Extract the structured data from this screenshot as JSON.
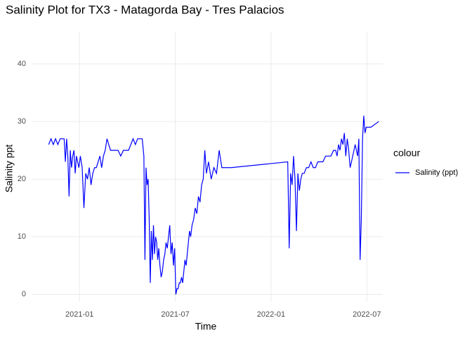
{
  "chart_data": {
    "type": "line",
    "title": "Salinity Plot for TX3 - Matagorda Bay - Tres Palacios",
    "x_label": "Time",
    "y_label": "Salinity ppt",
    "legend_title": "colour",
    "x": [
      "2020-11",
      "2020-11",
      "2020-11",
      "2020-11",
      "2020-11",
      "2020-11",
      "2020-11",
      "2020-12",
      "2020-12",
      "2020-12",
      "2020-12",
      "2020-12",
      "2020-12",
      "2020-12",
      "2020-12",
      "2020-12",
      "2020-12",
      "2020-12",
      "2020-12",
      "2020-12",
      "2021-01",
      "2021-01",
      "2021-01",
      "2021-01",
      "2021-01",
      "2021-01",
      "2021-01",
      "2021-01",
      "2021-01",
      "2021-02",
      "2021-02",
      "2021-02",
      "2021-02",
      "2021-02",
      "2021-02",
      "2021-02",
      "2021-02",
      "2021-02",
      "2021-03",
      "2021-03",
      "2021-03",
      "2021-03",
      "2021-03",
      "2021-03",
      "2021-04",
      "2021-04",
      "2021-04",
      "2021-04",
      "2021-04",
      "2021-04",
      "2021-04",
      "2021-05",
      "2021-05",
      "2021-05",
      "2021-05",
      "2021-05",
      "2021-05",
      "2021-05",
      "2021-05",
      "2021-05",
      "2021-05",
      "2021-05",
      "2021-05",
      "2021-05",
      "2021-05",
      "2021-05",
      "2021-06",
      "2021-06",
      "2021-06",
      "2021-06",
      "2021-06",
      "2021-06",
      "2021-06",
      "2021-06",
      "2021-06",
      "2021-06",
      "2021-06",
      "2021-06",
      "2021-06",
      "2021-07",
      "2021-07",
      "2021-07",
      "2021-07",
      "2021-07",
      "2021-07",
      "2021-07",
      "2021-07",
      "2021-07",
      "2021-07",
      "2021-07",
      "2021-07",
      "2021-07",
      "2021-07",
      "2021-08",
      "2021-08",
      "2021-08",
      "2021-08",
      "2021-08",
      "2021-08",
      "2021-08",
      "2021-08",
      "2021-08",
      "2021-08",
      "2021-09",
      "2021-09",
      "2021-09",
      "2021-09",
      "2021-09",
      "2021-09",
      "2021-10",
      "2022-02",
      "2022-02",
      "2022-02",
      "2022-02",
      "2022-02",
      "2022-02",
      "2022-02",
      "2022-02",
      "2022-02",
      "2022-02",
      "2022-02",
      "2022-03",
      "2022-03",
      "2022-03",
      "2022-03",
      "2022-03",
      "2022-03",
      "2022-03",
      "2022-04",
      "2022-04",
      "2022-04",
      "2022-04",
      "2022-04",
      "2022-04",
      "2022-05",
      "2022-05",
      "2022-05",
      "2022-05",
      "2022-05",
      "2022-05",
      "2022-05",
      "2022-05",
      "2022-05",
      "2022-05",
      "2022-05",
      "2022-06",
      "2022-06",
      "2022-06",
      "2022-06",
      "2022-06",
      "2022-06",
      "2022-06",
      "2022-06",
      "2022-06",
      "2022-06",
      "2022-06",
      "2022-06",
      "2022-06",
      "2022-07",
      "2022-07"
    ],
    "series": [
      {
        "name": "Salinity (ppt)",
        "color": "#0000ff",
        "values": [
          26,
          27,
          26,
          27,
          26,
          27,
          27,
          27,
          23,
          27,
          24,
          17,
          25,
          22,
          24,
          25,
          21,
          24,
          23,
          22,
          24,
          22,
          15,
          21,
          20,
          22,
          19,
          21,
          22,
          22,
          23,
          24,
          22,
          24,
          25,
          27,
          26,
          25,
          25,
          25,
          25,
          24,
          25,
          25,
          25,
          26,
          27,
          26,
          27,
          27,
          27,
          24,
          6,
          22,
          19,
          20,
          13,
          2,
          11,
          6,
          12,
          7,
          10,
          9,
          6,
          8,
          5,
          3,
          4,
          6,
          7,
          9,
          8,
          10,
          12,
          7,
          9,
          5,
          8,
          0,
          1,
          1,
          2,
          2,
          3,
          2,
          4,
          6,
          5,
          7,
          9,
          11,
          10,
          12,
          13,
          15,
          14,
          17,
          16,
          19,
          20,
          25,
          21,
          23,
          20,
          22,
          21,
          25,
          22,
          22,
          23,
          8,
          21,
          19,
          24,
          20,
          11,
          21,
          18,
          20,
          21,
          21,
          22,
          22,
          23,
          22,
          22,
          23,
          23,
          23,
          24,
          24,
          24,
          25,
          25,
          24,
          26,
          25,
          27,
          26,
          28,
          24,
          27,
          25,
          22,
          23,
          24,
          25,
          26,
          25,
          24,
          27,
          6,
          13,
          27,
          31,
          28,
          29,
          29,
          30
        ]
      }
    ],
    "xlim": [
      "2020-10",
      "2022-08"
    ],
    "xticks": [
      "2021-01",
      "2021-07",
      "2022-01",
      "2022-07"
    ],
    "ylim": [
      -1.3,
      45.6
    ],
    "yticks": [
      0,
      10,
      20,
      30,
      40
    ],
    "grid": true
  }
}
